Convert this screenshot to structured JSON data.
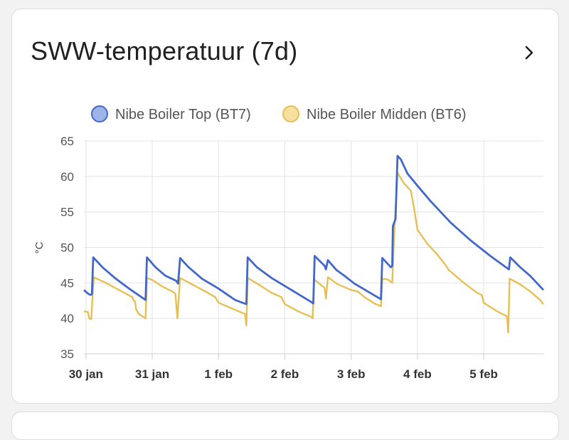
{
  "card": {
    "title": "SWW-temperatuur (7d)",
    "more_icon": "chevron-right-icon"
  },
  "chart_data": {
    "type": "line",
    "title": "SWW-temperatuur (7d)",
    "xlabel": "",
    "ylabel": "°C",
    "ylim": [
      35,
      65
    ],
    "yticks": [
      35,
      40,
      45,
      50,
      55,
      60,
      65
    ],
    "xticks": [
      "30 jan",
      "31 jan",
      "1 feb",
      "2 feb",
      "3 feb",
      "4 feb",
      "5 feb"
    ],
    "x_unit": "days from 30 jan 00:00",
    "xlim": [
      -0.03,
      6.9
    ],
    "grid": true,
    "legend_position": "top",
    "series": [
      {
        "name": "Nibe Boiler Top (BT7)",
        "color": "#4468c8",
        "fill": "#9db4ea",
        "points": [
          [
            -0.03,
            44.0
          ],
          [
            0.03,
            43.5
          ],
          [
            0.07,
            43.3
          ],
          [
            0.09,
            43.4
          ],
          [
            0.11,
            48.6
          ],
          [
            0.25,
            47.2
          ],
          [
            0.45,
            45.6
          ],
          [
            0.65,
            44.2
          ],
          [
            0.9,
            42.6
          ],
          [
            0.92,
            48.6
          ],
          [
            1.05,
            47.2
          ],
          [
            1.2,
            46.0
          ],
          [
            1.36,
            45.3
          ],
          [
            1.39,
            44.9
          ],
          [
            1.42,
            48.5
          ],
          [
            1.55,
            47.2
          ],
          [
            1.75,
            45.6
          ],
          [
            2.0,
            44.2
          ],
          [
            2.25,
            42.6
          ],
          [
            2.42,
            42.0
          ],
          [
            2.44,
            48.6
          ],
          [
            2.58,
            47.2
          ],
          [
            2.8,
            45.7
          ],
          [
            3.1,
            44.0
          ],
          [
            3.4,
            42.3
          ],
          [
            3.43,
            42.1
          ],
          [
            3.45,
            48.8
          ],
          [
            3.6,
            47.4
          ],
          [
            3.62,
            46.9
          ],
          [
            3.65,
            48.2
          ],
          [
            3.78,
            46.8
          ],
          [
            3.9,
            46.0
          ],
          [
            4.05,
            44.9
          ],
          [
            4.25,
            43.8
          ],
          [
            4.45,
            42.7
          ],
          [
            4.47,
            48.5
          ],
          [
            4.6,
            47.2
          ],
          [
            4.62,
            47.4
          ],
          [
            4.63,
            53.0
          ],
          [
            4.67,
            54.0
          ],
          [
            4.7,
            62.9
          ],
          [
            4.75,
            62.4
          ],
          [
            4.85,
            60.4
          ],
          [
            5.0,
            58.7
          ],
          [
            5.2,
            56.5
          ],
          [
            5.5,
            53.5
          ],
          [
            5.8,
            51.0
          ],
          [
            6.1,
            48.8
          ],
          [
            6.38,
            46.9
          ],
          [
            6.4,
            48.6
          ],
          [
            6.55,
            47.2
          ],
          [
            6.7,
            46.0
          ],
          [
            6.9,
            44.0
          ]
        ]
      },
      {
        "name": "Nibe Boiler Midden (BT6)",
        "color": "#e6bf55",
        "fill": "#f6df9f",
        "points": [
          [
            -0.03,
            41.0
          ],
          [
            0.03,
            40.9
          ],
          [
            0.05,
            40.0
          ],
          [
            0.08,
            39.9
          ],
          [
            0.1,
            43.0
          ],
          [
            0.12,
            45.8
          ],
          [
            0.3,
            45.0
          ],
          [
            0.5,
            44.0
          ],
          [
            0.7,
            43.0
          ],
          [
            0.72,
            42.5
          ],
          [
            0.74,
            42.4
          ],
          [
            0.76,
            41.2
          ],
          [
            0.8,
            40.6
          ],
          [
            0.9,
            40.0
          ],
          [
            0.92,
            45.7
          ],
          [
            1.0,
            45.4
          ],
          [
            1.15,
            44.5
          ],
          [
            1.3,
            43.8
          ],
          [
            1.35,
            43.5
          ],
          [
            1.38,
            40.0
          ],
          [
            1.42,
            45.7
          ],
          [
            1.6,
            44.8
          ],
          [
            1.8,
            43.8
          ],
          [
            1.95,
            43.0
          ],
          [
            2.0,
            42.2
          ],
          [
            2.2,
            41.4
          ],
          [
            2.35,
            40.8
          ],
          [
            2.4,
            40.6
          ],
          [
            2.42,
            39.0
          ],
          [
            2.44,
            45.7
          ],
          [
            2.6,
            44.8
          ],
          [
            2.8,
            43.6
          ],
          [
            2.95,
            43.0
          ],
          [
            3.0,
            42.0
          ],
          [
            3.2,
            41.0
          ],
          [
            3.4,
            40.2
          ],
          [
            3.42,
            40.0
          ],
          [
            3.44,
            45.5
          ],
          [
            3.6,
            44.3
          ],
          [
            3.62,
            42.8
          ],
          [
            3.65,
            45.8
          ],
          [
            3.8,
            44.8
          ],
          [
            4.0,
            44.0
          ],
          [
            4.1,
            43.8
          ],
          [
            4.2,
            43.0
          ],
          [
            4.35,
            42.1
          ],
          [
            4.45,
            41.7
          ],
          [
            4.47,
            45.6
          ],
          [
            4.55,
            45.5
          ],
          [
            4.62,
            45.0
          ],
          [
            4.65,
            52.0
          ],
          [
            4.7,
            60.5
          ],
          [
            4.8,
            59.0
          ],
          [
            4.9,
            58.0
          ],
          [
            4.95,
            55.5
          ],
          [
            5.0,
            52.5
          ],
          [
            5.15,
            50.5
          ],
          [
            5.3,
            49.0
          ],
          [
            5.45,
            47.2
          ],
          [
            5.47,
            46.8
          ],
          [
            5.5,
            46.6
          ],
          [
            5.7,
            45.0
          ],
          [
            5.9,
            43.6
          ],
          [
            5.97,
            43.3
          ],
          [
            6.0,
            42.2
          ],
          [
            6.2,
            41.0
          ],
          [
            6.35,
            40.3
          ],
          [
            6.37,
            38.0
          ],
          [
            6.39,
            45.6
          ],
          [
            6.55,
            44.8
          ],
          [
            6.7,
            43.8
          ],
          [
            6.85,
            42.6
          ],
          [
            6.9,
            42.0
          ]
        ]
      }
    ]
  }
}
